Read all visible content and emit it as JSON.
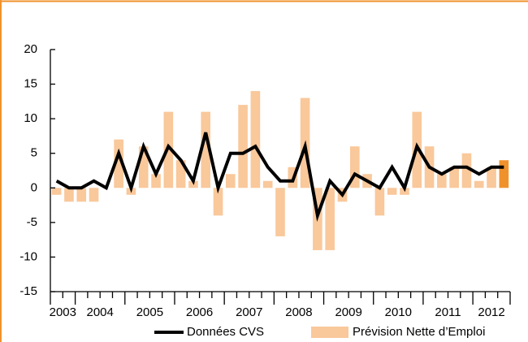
{
  "chart_data": {
    "type": "bar",
    "categories": [
      "2003",
      null,
      "2004",
      null,
      null,
      null,
      "2005",
      null,
      null,
      null,
      "2006",
      null,
      null,
      null,
      "2007",
      null,
      null,
      null,
      "2008",
      null,
      null,
      null,
      "2009",
      null,
      null,
      null,
      "2010",
      null,
      null,
      null,
      "2011",
      null,
      null,
      null,
      "2012",
      null,
      null
    ],
    "series": [
      {
        "name": "Données CVS",
        "type": "line",
        "color": "#000000",
        "values": [
          1,
          0,
          0,
          1,
          0,
          5,
          0,
          6,
          2,
          6,
          4,
          1,
          8,
          0,
          5,
          5,
          6,
          3,
          1,
          1,
          6,
          -4,
          1,
          -1,
          2,
          1,
          0,
          3,
          0,
          6,
          3,
          2,
          3,
          3,
          2,
          3,
          3
        ]
      },
      {
        "name": "Prévision Nette d’Emploi",
        "type": "bar",
        "color": "#f9c89b",
        "values": [
          -1,
          -2,
          -2,
          -2,
          0,
          7,
          -1,
          6,
          2,
          11,
          4,
          1,
          11,
          -4,
          2,
          12,
          14,
          1,
          -7,
          3,
          13,
          -9,
          -9,
          -2,
          6,
          2,
          -4,
          -1,
          -1,
          11,
          6,
          2,
          3,
          5,
          1,
          3,
          4
        ],
        "colors": [
          "#f9c89b",
          "#f9c89b",
          "#f9c89b",
          "#f9c89b",
          "#f9c89b",
          "#f9c89b",
          "#f9c89b",
          "#f9c89b",
          "#f9c89b",
          "#f9c89b",
          "#f9c89b",
          "#f9c89b",
          "#f9c89b",
          "#f9c89b",
          "#f9c89b",
          "#f9c89b",
          "#f9c89b",
          "#f9c89b",
          "#f9c89b",
          "#f9c89b",
          "#f9c89b",
          "#f9c89b",
          "#f9c89b",
          "#f9c89b",
          "#f9c89b",
          "#f9c89b",
          "#f9c89b",
          "#f9c89b",
          "#f9c89b",
          "#f9c89b",
          "#f9c89b",
          "#f9c89b",
          "#f9c89b",
          "#f9c89b",
          "#f9c89b",
          "#f9c89b",
          "#f0922c"
        ]
      }
    ],
    "ylim": [
      -15,
      20
    ],
    "yticks": [
      -15,
      -10,
      -5,
      0,
      5,
      10,
      15,
      20
    ],
    "legend": "bottom"
  }
}
